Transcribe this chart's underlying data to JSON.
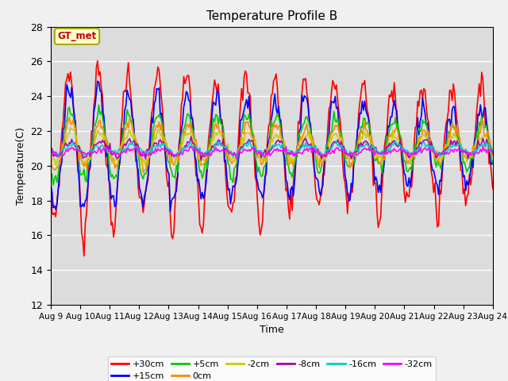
{
  "title": "Temperature Profile B",
  "xlabel": "Time",
  "ylabel": "Temperature(C)",
  "ylim": [
    12,
    28
  ],
  "bg_color": "#dcdcdc",
  "fig_bg": "#f0f0f0",
  "series": {
    "+30cm": {
      "color": "#ff0000",
      "lw": 1.2
    },
    "+15cm": {
      "color": "#0000ff",
      "lw": 1.2
    },
    "+5cm": {
      "color": "#00cc00",
      "lw": 1.2
    },
    "0cm": {
      "color": "#ff8800",
      "lw": 1.2
    },
    "-2cm": {
      "color": "#cccc00",
      "lw": 1.2
    },
    "-8cm": {
      "color": "#aa00aa",
      "lw": 1.2
    },
    "-16cm": {
      "color": "#00cccc",
      "lw": 1.2
    },
    "-32cm": {
      "color": "#ff00ff",
      "lw": 1.2
    }
  },
  "xtick_labels": [
    "Aug 9",
    "Aug 10",
    "Aug 11",
    "Aug 12",
    "Aug 13",
    "Aug 14",
    "Aug 15",
    "Aug 16",
    "Aug 17",
    "Aug 18",
    "Aug 19",
    "Aug 20",
    "Aug 21",
    "Aug 22",
    "Aug 23",
    "Aug 24"
  ],
  "ytick_positions": [
    12,
    14,
    16,
    18,
    20,
    22,
    24,
    26,
    28
  ],
  "legend_label": "GT_met",
  "legend_bg": "#ffffcc",
  "legend_text_color": "#cc0000",
  "legend_edge": "#aaaa00"
}
